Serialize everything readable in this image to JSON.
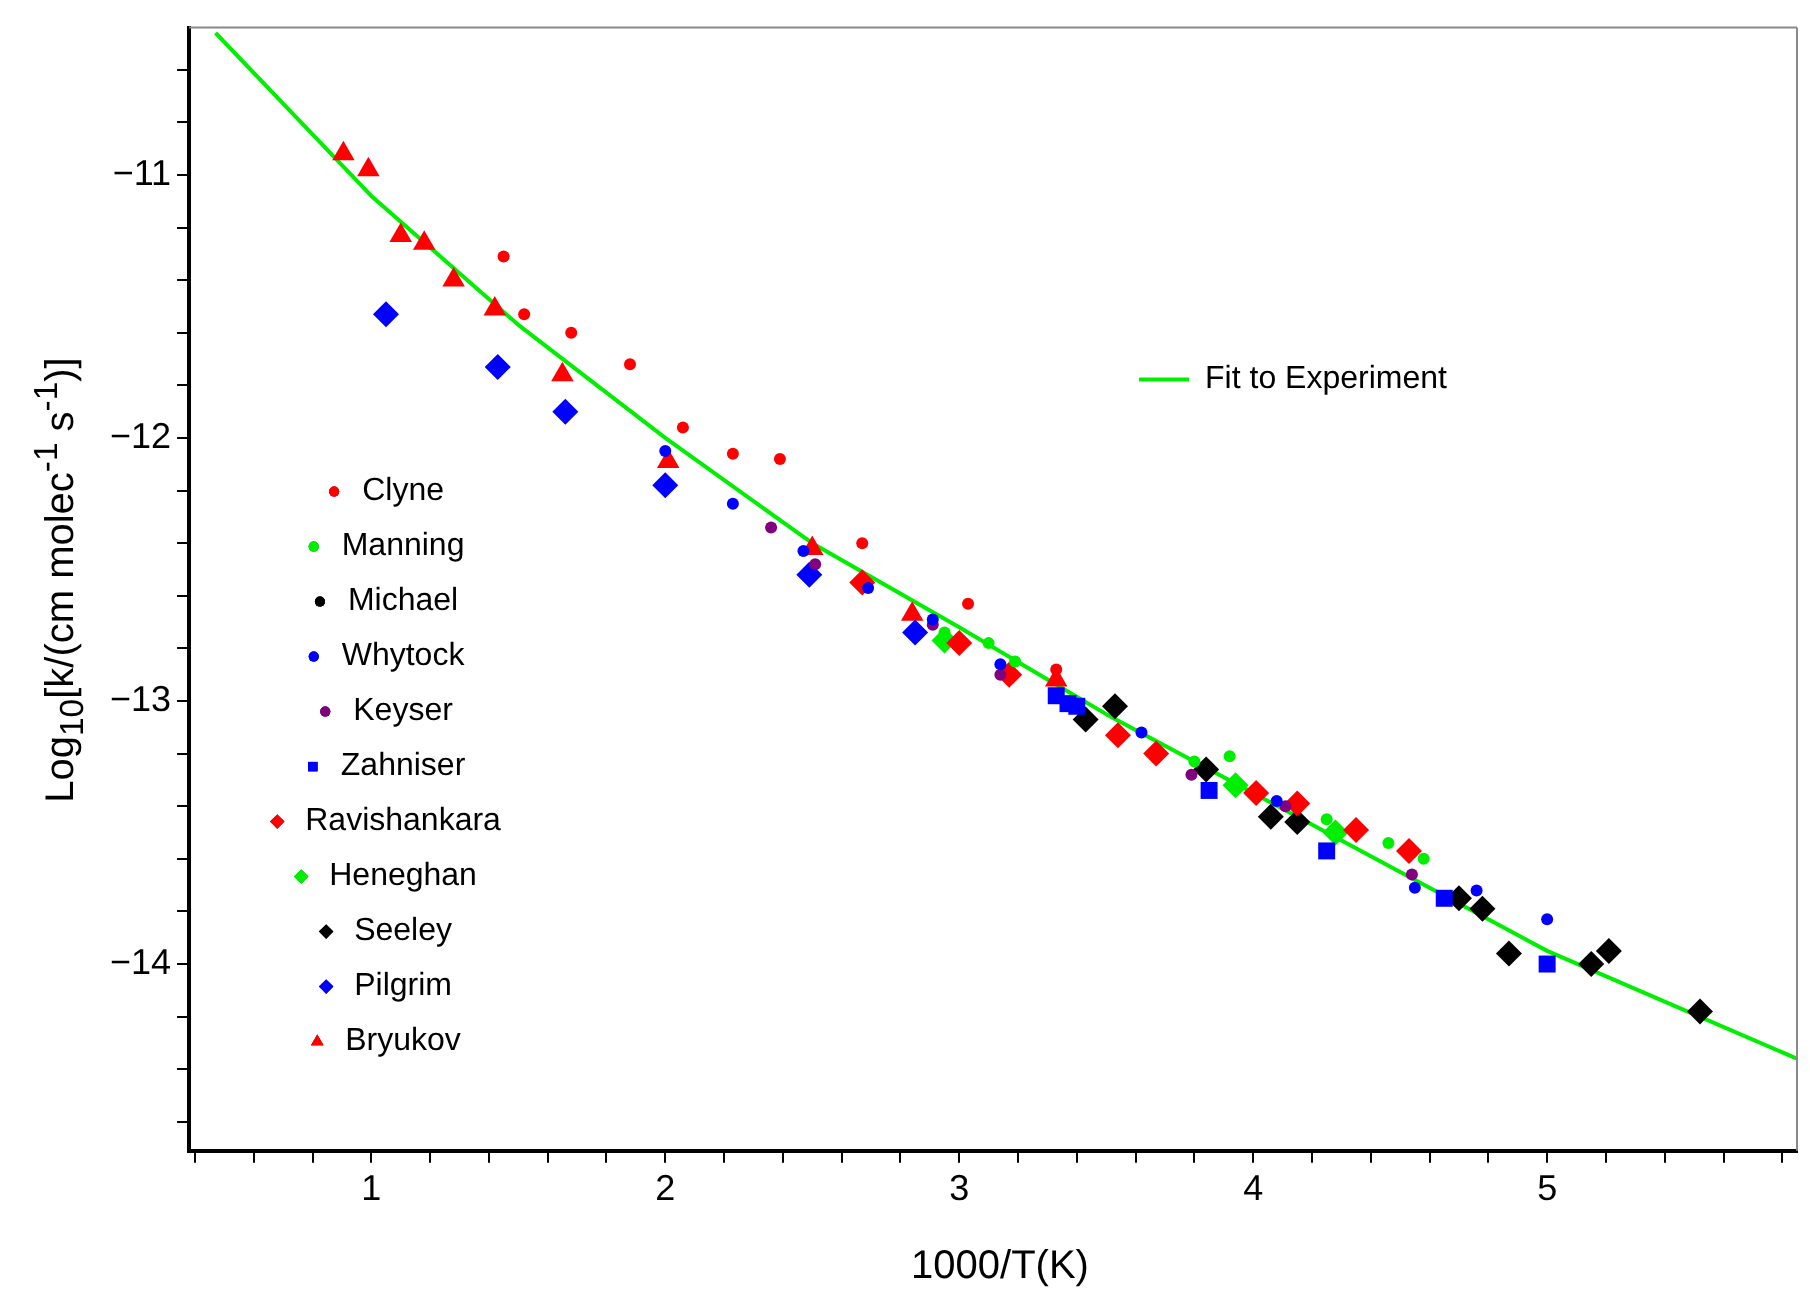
{
  "chart_data": {
    "type": "scatter",
    "xlabel": "1000/T(K)",
    "ylabel": "Log$_{10}$[k/(cm molec$^{-1}$ s$^{-1}$)]",
    "xlim": [
      0.38,
      5.85
    ],
    "ylim": [
      -14.71,
      -10.44
    ],
    "xticks": [
      {
        "value": 0.4,
        "label": null
      },
      {
        "value": 0.6,
        "label": null
      },
      {
        "value": 0.8,
        "label": null
      },
      1,
      {
        "value": 1.2,
        "label": null
      },
      {
        "value": 1.4,
        "label": null
      },
      {
        "value": 1.6,
        "label": null
      },
      {
        "value": 1.8,
        "label": null
      },
      2,
      {
        "value": 2.2,
        "label": null
      },
      {
        "value": 2.4,
        "label": null
      },
      {
        "value": 2.6,
        "label": null
      },
      {
        "value": 2.8,
        "label": null
      },
      3,
      {
        "value": 3.2,
        "label": null
      },
      {
        "value": 3.4,
        "label": null
      },
      {
        "value": 3.6,
        "label": null
      },
      {
        "value": 3.8,
        "label": null
      },
      4,
      {
        "value": 4.2,
        "label": null
      },
      {
        "value": 4.4,
        "label": null
      },
      {
        "value": 4.6,
        "label": null
      },
      {
        "value": 4.8,
        "label": null
      },
      5,
      {
        "value": 5.2,
        "label": null
      },
      {
        "value": 5.4,
        "label": null
      },
      {
        "value": 5.6,
        "label": null
      },
      {
        "value": 5.8,
        "label": null
      }
    ],
    "yticks": [
      {
        "value": -14.6,
        "label": null
      },
      {
        "value": -14.4,
        "label": null
      },
      {
        "value": -14.2,
        "label": null
      },
      {
        "value": -14,
        "label": "−14"
      },
      {
        "value": -13.8,
        "label": null
      },
      {
        "value": -13.6,
        "label": null
      },
      {
        "value": -13.4,
        "label": null
      },
      {
        "value": -13.2,
        "label": null
      },
      {
        "value": -13,
        "label": "−13"
      },
      {
        "value": -12.8,
        "label": null
      },
      {
        "value": -12.6,
        "label": null
      },
      {
        "value": -12.4,
        "label": null
      },
      {
        "value": -12.2,
        "label": null
      },
      {
        "value": -12,
        "label": "−12"
      },
      {
        "value": -11.8,
        "label": null
      },
      {
        "value": -11.6,
        "label": null
      },
      {
        "value": -11.4,
        "label": null
      },
      {
        "value": -11.2,
        "label": null
      },
      {
        "value": -11,
        "label": "−11"
      },
      {
        "value": -10.8,
        "label": null
      },
      {
        "value": -10.6,
        "label": null
      }
    ],
    "grid": false,
    "legend": "left",
    "series": [
      {
        "name": "Clyne",
        "color": "#ff0000",
        "marker": "circle",
        "x": [
          1.45,
          1.52,
          1.68,
          1.88,
          2.06,
          2.23,
          2.39,
          2.67,
          3.03,
          3.33
        ],
        "values": [
          -11.31,
          -11.53,
          -11.6,
          -11.72,
          -11.96,
          -12.06,
          -12.08,
          -12.4,
          -12.63,
          -12.88
        ]
      },
      {
        "name": "Manning",
        "color": "#00ee00",
        "marker": "circle",
        "x": [
          2.95,
          3.1,
          3.19,
          3.8,
          3.92,
          4.25,
          4.46,
          4.58
        ],
        "values": [
          -12.74,
          -12.78,
          -12.85,
          -13.23,
          -13.21,
          -13.45,
          -13.54,
          -13.6
        ]
      },
      {
        "name": "Michael",
        "color": "#000000",
        "marker": "circle"
      },
      {
        "name": "Whytock",
        "color": "#0000ff",
        "marker": "circle",
        "x": [
          2.0,
          2.23,
          2.47,
          2.69,
          2.91,
          3.14,
          3.62,
          4.08,
          4.55,
          4.76,
          5.0
        ],
        "values": [
          -12.05,
          -12.25,
          -12.43,
          -12.57,
          -12.69,
          -12.86,
          -13.12,
          -13.38,
          -13.71,
          -13.72,
          -13.83
        ]
      },
      {
        "name": "Keyser",
        "color": "#800080",
        "marker": "circle",
        "x": [
          2.36,
          2.51,
          2.91,
          3.14,
          3.79,
          4.11,
          4.54
        ],
        "values": [
          -12.34,
          -12.48,
          -12.71,
          -12.9,
          -13.28,
          -13.4,
          -13.66
        ]
      },
      {
        "name": "Zahniser",
        "color": "#0000ff",
        "marker": "square",
        "x": [
          3.33,
          3.37,
          3.4,
          3.85,
          4.25,
          4.65,
          5.0
        ],
        "values": [
          -12.98,
          -13.01,
          -13.02,
          -13.34,
          -13.57,
          -13.75,
          -14.0
        ]
      },
      {
        "name": "Ravishankara",
        "color": "#ff0000",
        "marker": "diamond",
        "x": [
          2.67,
          3.0,
          3.17,
          3.54,
          3.67,
          4.01,
          4.15,
          4.35,
          4.53
        ],
        "values": [
          -12.55,
          -12.78,
          -12.9,
          -13.13,
          -13.2,
          -13.35,
          -13.39,
          -13.49,
          -13.57
        ]
      },
      {
        "name": "Heneghan",
        "color": "#00ee00",
        "marker": "diamond",
        "x": [
          2.95,
          3.94,
          4.28
        ],
        "values": [
          -12.77,
          -13.32,
          -13.5
        ]
      },
      {
        "name": "Seeley",
        "color": "#000000",
        "marker": "diamond",
        "x": [
          3.43,
          3.53,
          3.84,
          4.06,
          4.15,
          4.7,
          4.78,
          4.87,
          5.15,
          5.21,
          5.52
        ],
        "values": [
          -13.07,
          -13.02,
          -13.26,
          -13.44,
          -13.46,
          -13.75,
          -13.79,
          -13.96,
          -14.0,
          -13.95,
          -14.18
        ]
      },
      {
        "name": "Pilgrim",
        "color": "#0000ff",
        "marker": "diamond",
        "x": [
          1.05,
          1.43,
          1.66,
          2.0,
          2.49,
          2.85
        ],
        "values": [
          -11.53,
          -11.73,
          -11.9,
          -12.18,
          -12.52,
          -12.74
        ]
      },
      {
        "name": "Bryukov",
        "color": "#ff0000",
        "marker": "triangle",
        "x": [
          0.905,
          0.99,
          1.1,
          1.18,
          1.28,
          1.42,
          1.65,
          2.01,
          2.5,
          2.84,
          3.33
        ],
        "values": [
          -10.92,
          -10.98,
          -11.23,
          -11.26,
          -11.4,
          -11.51,
          -11.76,
          -12.09,
          -12.42,
          -12.67,
          -12.92
        ]
      },
      {
        "name": "Fit to Experiment",
        "type": "line",
        "color": "#00ee00",
        "marker": "none",
        "line_style": "solid",
        "x": [
          0.47,
          1,
          1.5,
          2,
          2.5,
          3,
          3.5,
          4,
          4.5,
          5,
          5.85
        ],
        "values": [
          -10.46,
          -11.08,
          -11.57,
          -12.0,
          -12.4,
          -12.72,
          -13.05,
          -13.35,
          -13.65,
          -13.95,
          -14.36
        ]
      }
    ]
  }
}
